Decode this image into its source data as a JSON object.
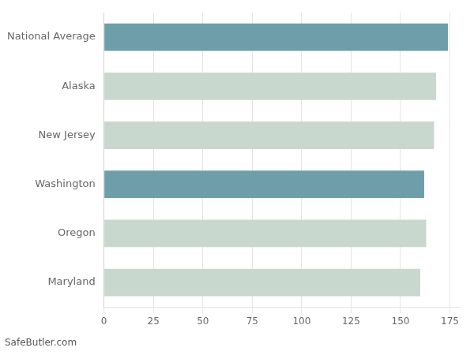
{
  "chart_data": {
    "type": "bar",
    "orientation": "horizontal",
    "categories": [
      "National Average",
      "Alaska",
      "New Jersey",
      "Washington",
      "Oregon",
      "Maryland"
    ],
    "values": [
      174,
      168,
      167,
      162,
      163,
      160
    ],
    "colors": [
      "#6f9eab",
      "#c8d8ce",
      "#c8d8ce",
      "#6f9eab",
      "#c8d8ce",
      "#c8d8ce"
    ],
    "xlim": [
      0,
      180
    ],
    "xticks": [
      0,
      25,
      50,
      75,
      100,
      125,
      150,
      175
    ],
    "grid": true,
    "annotations": [
      "SafeButler.com"
    ]
  }
}
